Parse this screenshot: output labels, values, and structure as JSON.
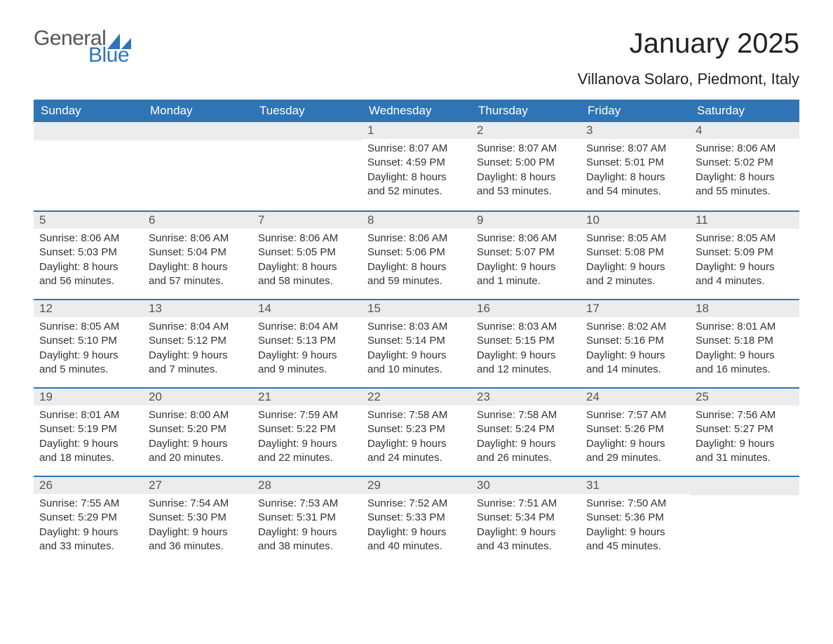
{
  "logo": {
    "text1": "General",
    "text2": "Blue",
    "sail_color": "#2f75b5"
  },
  "title": "January 2025",
  "subtitle": "Villanova Solaro, Piedmont, Italy",
  "colors": {
    "header_bg": "#2f75b5",
    "header_text": "#ffffff",
    "daynum_bg": "#ececec",
    "border": "#2f75b5",
    "body_text": "#333333"
  },
  "weekdays": [
    "Sunday",
    "Monday",
    "Tuesday",
    "Wednesday",
    "Thursday",
    "Friday",
    "Saturday"
  ],
  "weeks": [
    [
      null,
      null,
      null,
      {
        "n": "1",
        "sunrise": "8:07 AM",
        "sunset": "4:59 PM",
        "daylight": "8 hours and 52 minutes."
      },
      {
        "n": "2",
        "sunrise": "8:07 AM",
        "sunset": "5:00 PM",
        "daylight": "8 hours and 53 minutes."
      },
      {
        "n": "3",
        "sunrise": "8:07 AM",
        "sunset": "5:01 PM",
        "daylight": "8 hours and 54 minutes."
      },
      {
        "n": "4",
        "sunrise": "8:06 AM",
        "sunset": "5:02 PM",
        "daylight": "8 hours and 55 minutes."
      }
    ],
    [
      {
        "n": "5",
        "sunrise": "8:06 AM",
        "sunset": "5:03 PM",
        "daylight": "8 hours and 56 minutes."
      },
      {
        "n": "6",
        "sunrise": "8:06 AM",
        "sunset": "5:04 PM",
        "daylight": "8 hours and 57 minutes."
      },
      {
        "n": "7",
        "sunrise": "8:06 AM",
        "sunset": "5:05 PM",
        "daylight": "8 hours and 58 minutes."
      },
      {
        "n": "8",
        "sunrise": "8:06 AM",
        "sunset": "5:06 PM",
        "daylight": "8 hours and 59 minutes."
      },
      {
        "n": "9",
        "sunrise": "8:06 AM",
        "sunset": "5:07 PM",
        "daylight": "9 hours and 1 minute."
      },
      {
        "n": "10",
        "sunrise": "8:05 AM",
        "sunset": "5:08 PM",
        "daylight": "9 hours and 2 minutes."
      },
      {
        "n": "11",
        "sunrise": "8:05 AM",
        "sunset": "5:09 PM",
        "daylight": "9 hours and 4 minutes."
      }
    ],
    [
      {
        "n": "12",
        "sunrise": "8:05 AM",
        "sunset": "5:10 PM",
        "daylight": "9 hours and 5 minutes."
      },
      {
        "n": "13",
        "sunrise": "8:04 AM",
        "sunset": "5:12 PM",
        "daylight": "9 hours and 7 minutes."
      },
      {
        "n": "14",
        "sunrise": "8:04 AM",
        "sunset": "5:13 PM",
        "daylight": "9 hours and 9 minutes."
      },
      {
        "n": "15",
        "sunrise": "8:03 AM",
        "sunset": "5:14 PM",
        "daylight": "9 hours and 10 minutes."
      },
      {
        "n": "16",
        "sunrise": "8:03 AM",
        "sunset": "5:15 PM",
        "daylight": "9 hours and 12 minutes."
      },
      {
        "n": "17",
        "sunrise": "8:02 AM",
        "sunset": "5:16 PM",
        "daylight": "9 hours and 14 minutes."
      },
      {
        "n": "18",
        "sunrise": "8:01 AM",
        "sunset": "5:18 PM",
        "daylight": "9 hours and 16 minutes."
      }
    ],
    [
      {
        "n": "19",
        "sunrise": "8:01 AM",
        "sunset": "5:19 PM",
        "daylight": "9 hours and 18 minutes."
      },
      {
        "n": "20",
        "sunrise": "8:00 AM",
        "sunset": "5:20 PM",
        "daylight": "9 hours and 20 minutes."
      },
      {
        "n": "21",
        "sunrise": "7:59 AM",
        "sunset": "5:22 PM",
        "daylight": "9 hours and 22 minutes."
      },
      {
        "n": "22",
        "sunrise": "7:58 AM",
        "sunset": "5:23 PM",
        "daylight": "9 hours and 24 minutes."
      },
      {
        "n": "23",
        "sunrise": "7:58 AM",
        "sunset": "5:24 PM",
        "daylight": "9 hours and 26 minutes."
      },
      {
        "n": "24",
        "sunrise": "7:57 AM",
        "sunset": "5:26 PM",
        "daylight": "9 hours and 29 minutes."
      },
      {
        "n": "25",
        "sunrise": "7:56 AM",
        "sunset": "5:27 PM",
        "daylight": "9 hours and 31 minutes."
      }
    ],
    [
      {
        "n": "26",
        "sunrise": "7:55 AM",
        "sunset": "5:29 PM",
        "daylight": "9 hours and 33 minutes."
      },
      {
        "n": "27",
        "sunrise": "7:54 AM",
        "sunset": "5:30 PM",
        "daylight": "9 hours and 36 minutes."
      },
      {
        "n": "28",
        "sunrise": "7:53 AM",
        "sunset": "5:31 PM",
        "daylight": "9 hours and 38 minutes."
      },
      {
        "n": "29",
        "sunrise": "7:52 AM",
        "sunset": "5:33 PM",
        "daylight": "9 hours and 40 minutes."
      },
      {
        "n": "30",
        "sunrise": "7:51 AM",
        "sunset": "5:34 PM",
        "daylight": "9 hours and 43 minutes."
      },
      {
        "n": "31",
        "sunrise": "7:50 AM",
        "sunset": "5:36 PM",
        "daylight": "9 hours and 45 minutes."
      },
      null
    ]
  ],
  "labels": {
    "sunrise": "Sunrise: ",
    "sunset": "Sunset: ",
    "daylight": "Daylight: "
  }
}
